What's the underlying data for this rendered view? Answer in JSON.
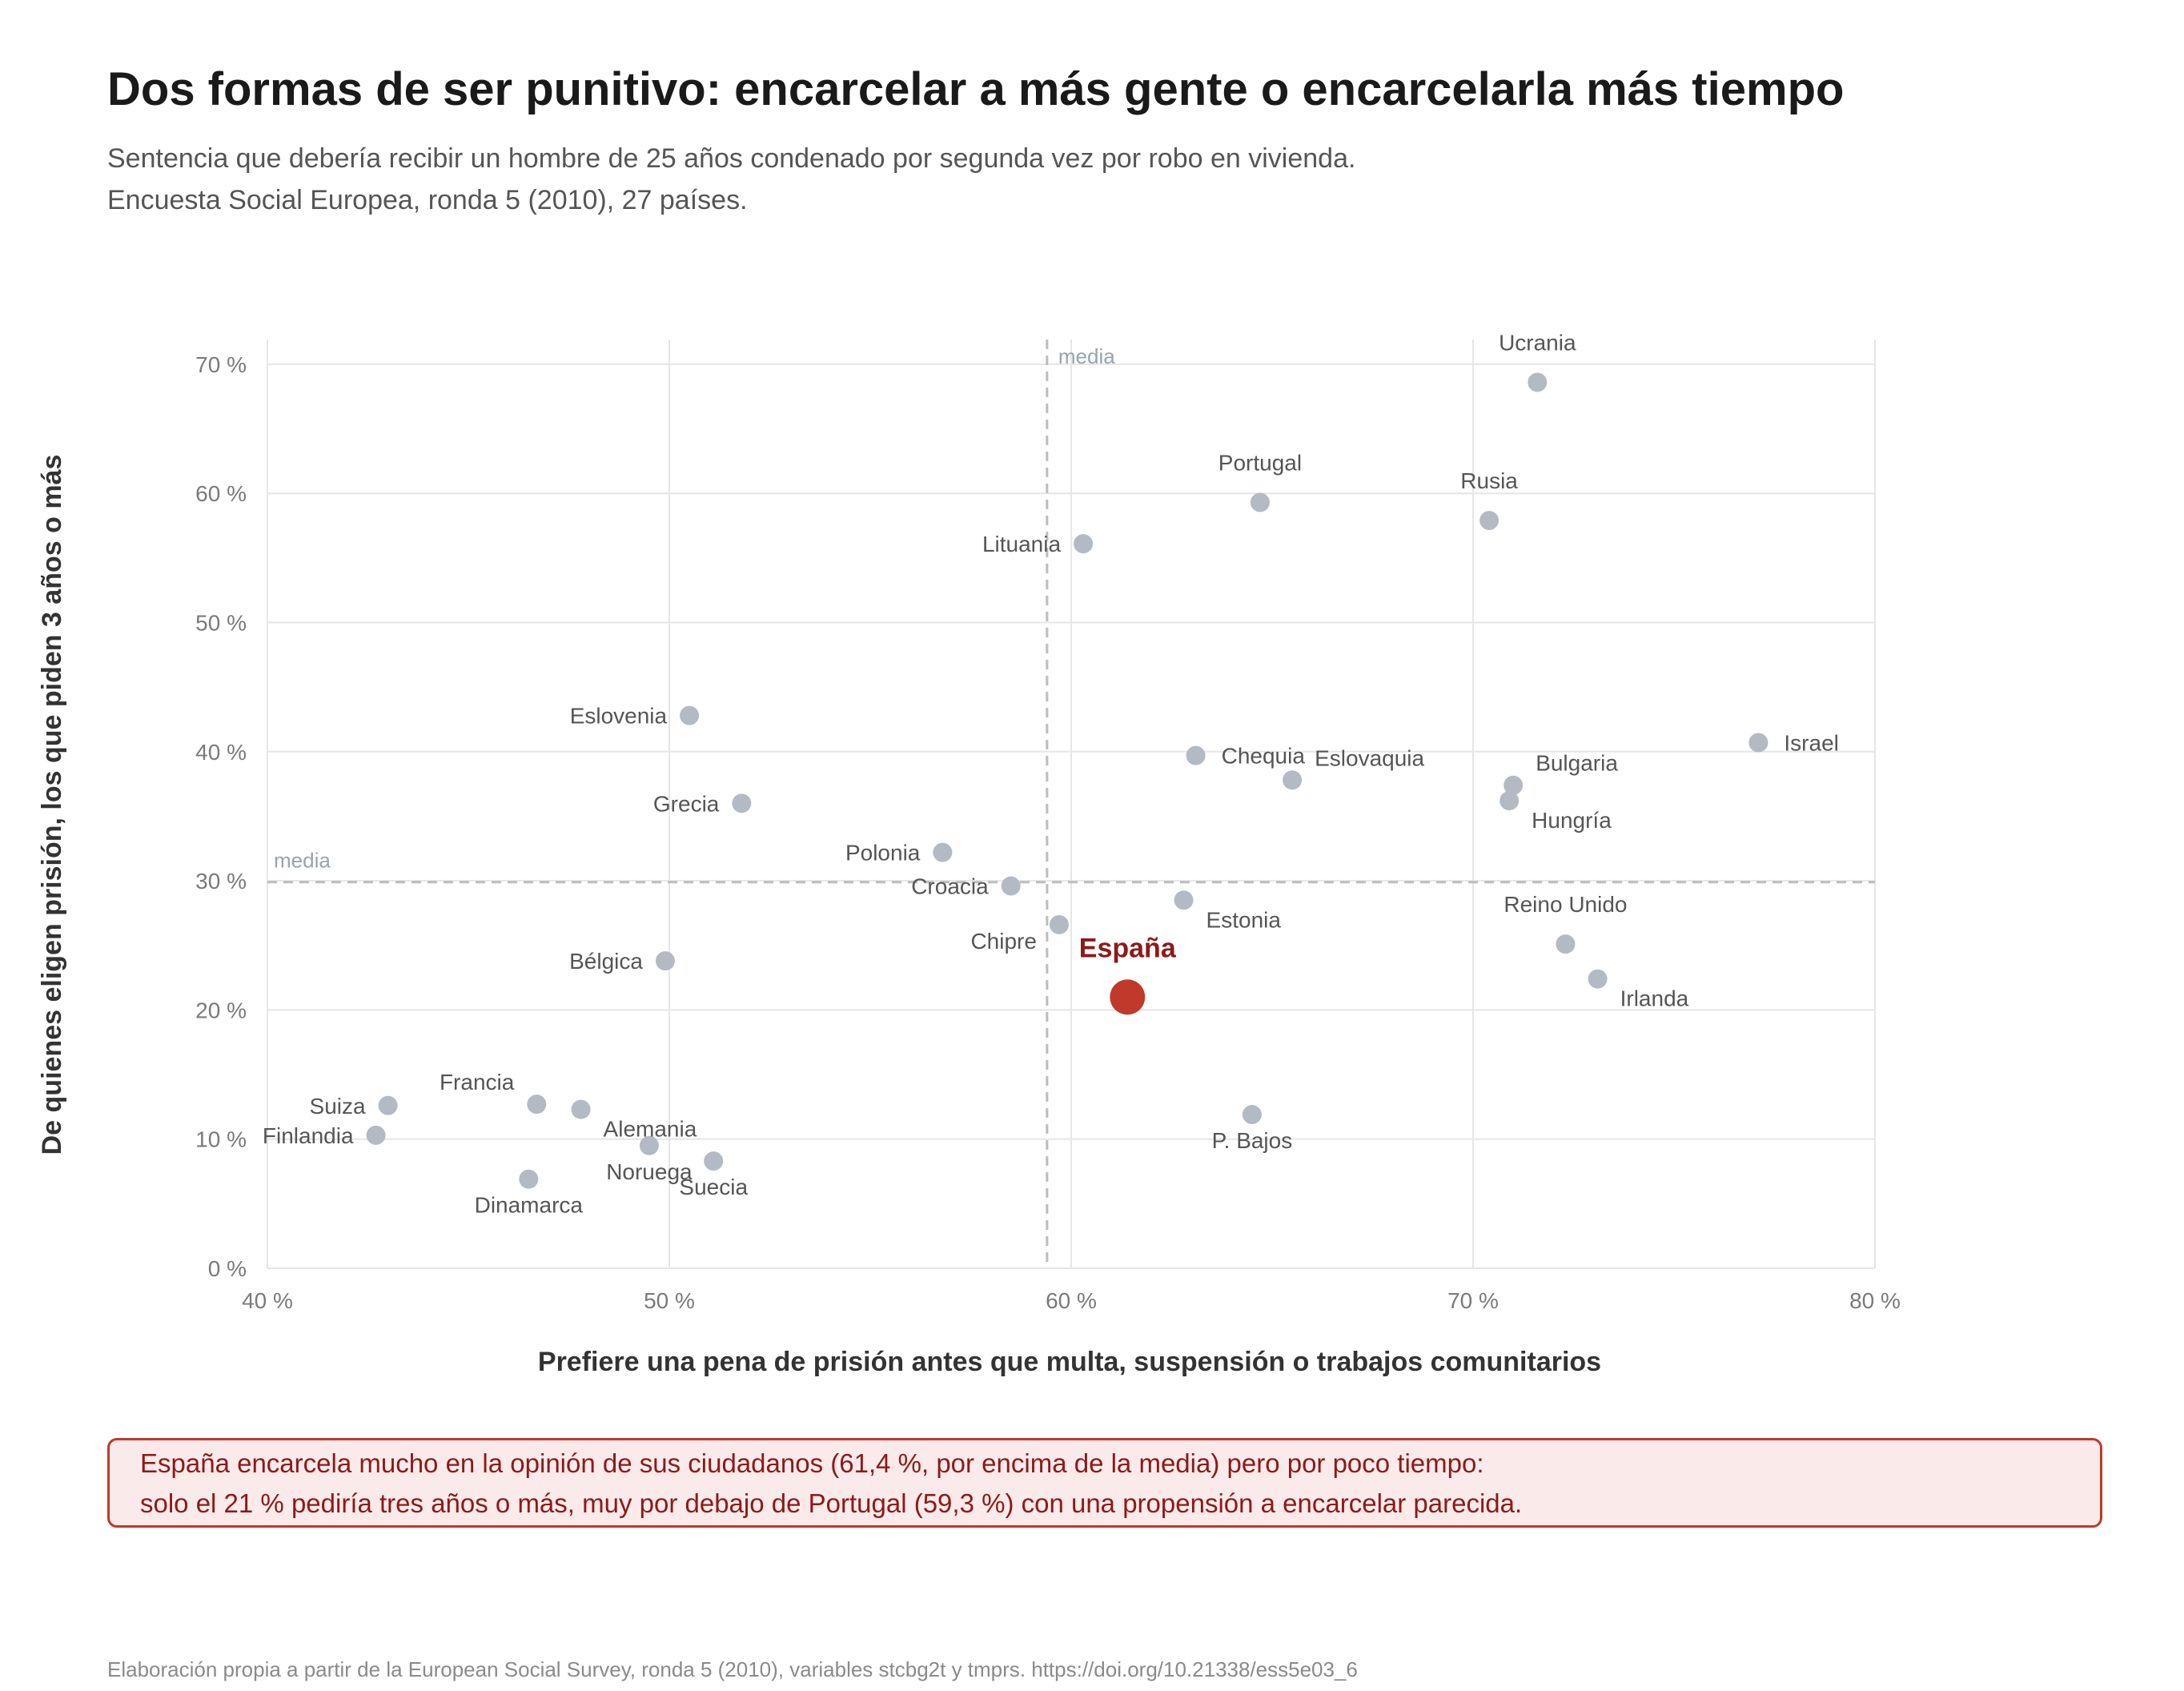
{
  "title": "Dos formas de ser punitivo: encarcelar a más gente o encarcelarla más tiempo",
  "subtitle": [
    "Sentencia que debería recibir un hombre de 25 años condenado por segunda vez por robo en vivienda.",
    "Encuesta Social Europea, ronda 5 (2010), 27 países."
  ],
  "callout": [
    "España encarcela mucho en la opinión de sus ciudadanos (61,4 %, por encima de la media) pero por poco tiempo:",
    "solo el 21 % pediría tres años o más, muy por debajo de Portugal (59,3 %) con una propensión a encarcelar parecida."
  ],
  "caption": "Elaboración propia a partir de la European Social Survey, ronda 5 (2010), variables stcbg2t y tmprs. https://doi.org/10.21338/ess5e03_6",
  "colors": {
    "point": "#b4bac3",
    "highlight": "#c0392b",
    "highlight_text": "#8b1a1a",
    "grid": "#e6e6e6",
    "mean_line": "#bdbdbd",
    "label": "#555555",
    "axis_title": "#333333"
  },
  "chart_data": {
    "type": "scatter",
    "xlabel": "Prefiere una pena de prisión antes que multa, suspensión o trabajos comunitarios",
    "ylabel": "De quienes eligen prisión, los que piden 3 años o más",
    "xlim": [
      40,
      80
    ],
    "ylim": [
      0,
      72
    ],
    "xticks": [
      40,
      50,
      60,
      70,
      80
    ],
    "yticks": [
      0,
      10,
      20,
      30,
      40,
      50,
      60,
      70
    ],
    "xtick_labels": [
      "40 %",
      "50 %",
      "60 %",
      "70 %",
      "80 %"
    ],
    "ytick_labels": [
      "0 %",
      "10 %",
      "20 %",
      "30 %",
      "40 %",
      "50 %",
      "60 %",
      "70 %"
    ],
    "grid": true,
    "mean_x": 59.4,
    "mean_y": 29.9,
    "mean_label": "media",
    "highlight": "España",
    "points": [
      {
        "label": "Ucrania",
        "x": 71.6,
        "y": 68.6,
        "pos": "top"
      },
      {
        "label": "Portugal",
        "x": 64.7,
        "y": 59.3,
        "pos": "top"
      },
      {
        "label": "Rusia",
        "x": 70.4,
        "y": 57.9,
        "pos": "top"
      },
      {
        "label": "Lituania",
        "x": 60.3,
        "y": 56.1,
        "pos": "left"
      },
      {
        "label": "Eslovenia",
        "x": 50.5,
        "y": 42.8,
        "pos": "left"
      },
      {
        "label": "Israel",
        "x": 77.1,
        "y": 40.7,
        "pos": "right"
      },
      {
        "label": "Chequia",
        "x": 63.1,
        "y": 39.7,
        "pos": "right"
      },
      {
        "label": "Eslovaquia",
        "x": 65.5,
        "y": 37.8,
        "pos": "topright"
      },
      {
        "label": "Bulgaria",
        "x": 71.0,
        "y": 37.4,
        "pos": "topright"
      },
      {
        "label": "Hungría",
        "x": 70.9,
        "y": 36.2,
        "pos": "bottomright"
      },
      {
        "label": "Grecia",
        "x": 51.8,
        "y": 36.0,
        "pos": "left"
      },
      {
        "label": "Polonia",
        "x": 56.8,
        "y": 32.2,
        "pos": "left"
      },
      {
        "label": "Croacia",
        "x": 58.5,
        "y": 29.6,
        "pos": "left"
      },
      {
        "label": "Estonia",
        "x": 62.8,
        "y": 28.5,
        "pos": "bottomright"
      },
      {
        "label": "Chipre",
        "x": 59.7,
        "y": 26.6,
        "pos": "bottomleft"
      },
      {
        "label": "Reino Unido",
        "x": 72.3,
        "y": 25.1,
        "pos": "top"
      },
      {
        "label": "Bélgica",
        "x": 49.9,
        "y": 23.8,
        "pos": "left"
      },
      {
        "label": "Irlanda",
        "x": 73.1,
        "y": 22.4,
        "pos": "bottomright"
      },
      {
        "label": "España",
        "x": 61.4,
        "y": 21.0,
        "pos": "top"
      },
      {
        "label": "Suiza",
        "x": 43.0,
        "y": 12.6,
        "pos": "left"
      },
      {
        "label": "Francia",
        "x": 46.7,
        "y": 12.7,
        "pos": "topleft"
      },
      {
        "label": "Alemania",
        "x": 47.8,
        "y": 12.3,
        "pos": "bottomright"
      },
      {
        "label": "P. Bajos",
        "x": 64.5,
        "y": 11.9,
        "pos": "bottom"
      },
      {
        "label": "Finlandia",
        "x": 42.7,
        "y": 10.3,
        "pos": "left"
      },
      {
        "label": "Noruega",
        "x": 49.5,
        "y": 9.5,
        "pos": "bottom"
      },
      {
        "label": "Suecia",
        "x": 51.1,
        "y": 8.3,
        "pos": "bottom"
      },
      {
        "label": "Dinamarca",
        "x": 46.5,
        "y": 6.9,
        "pos": "bottom"
      }
    ]
  }
}
